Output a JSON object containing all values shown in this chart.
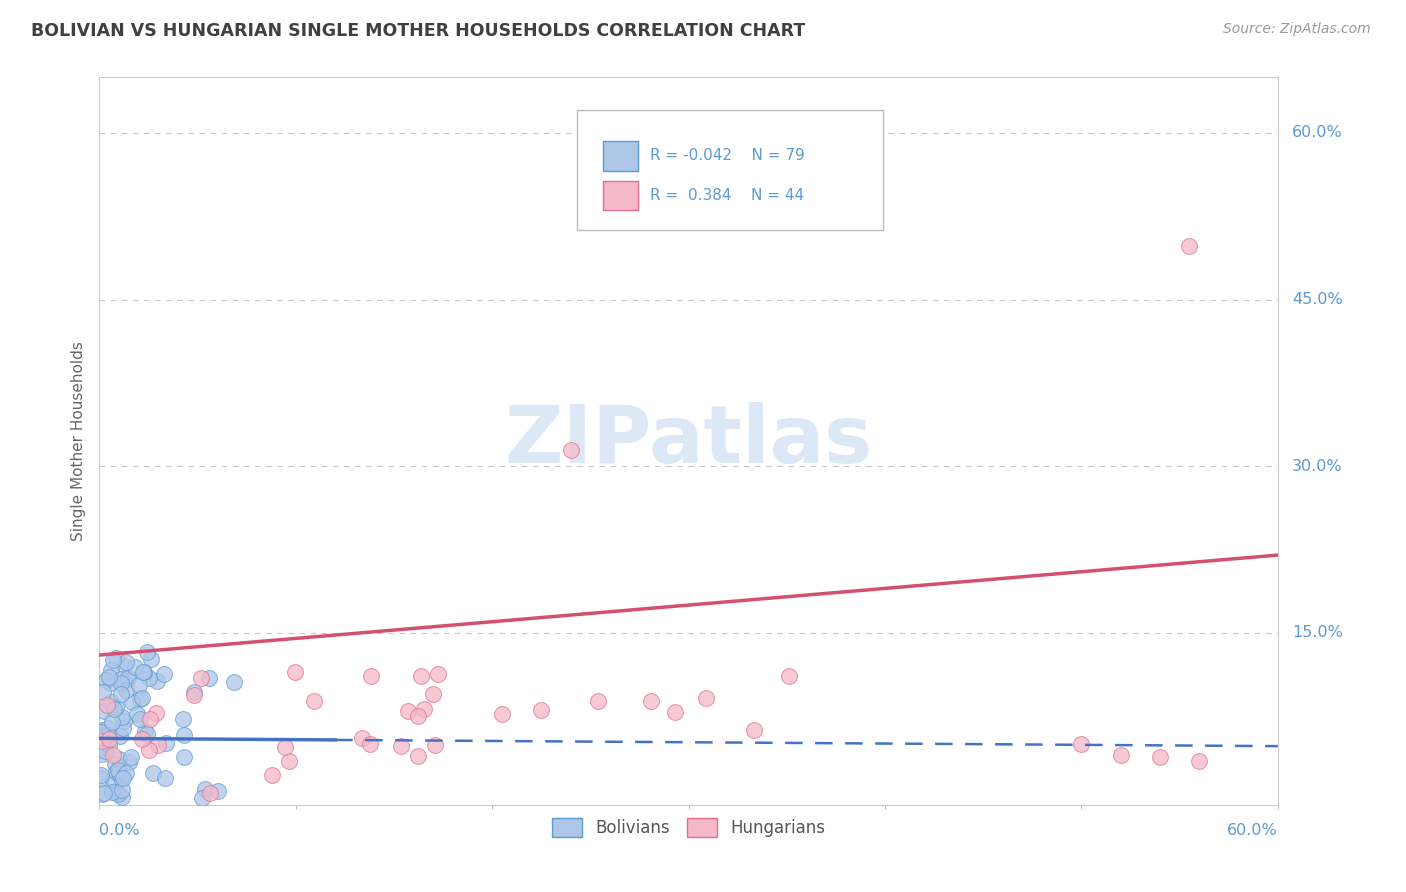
{
  "title": "BOLIVIAN VS HUNGARIAN SINGLE MOTHER HOUSEHOLDS CORRELATION CHART",
  "source": "Source: ZipAtlas.com",
  "ylabel": "Single Mother Households",
  "right_yticklabels": [
    "15.0%",
    "30.0%",
    "45.0%",
    "60.0%"
  ],
  "right_ytick_vals": [
    0.15,
    0.3,
    0.45,
    0.6
  ],
  "legend_r_blue": "-0.042",
  "legend_n_blue": "79",
  "legend_r_pink": "0.384",
  "legend_n_pink": "44",
  "blue_fill": "#aec6e8",
  "pink_fill": "#f5b8c8",
  "blue_edge": "#5b9bd5",
  "pink_edge": "#e07090",
  "blue_line": "#4472c4",
  "pink_line": "#d45070",
  "title_color": "#404040",
  "axis_label_color": "#5b9bd5",
  "watermark_color": "#dce8f5",
  "background_color": "#ffffff",
  "grid_color": "#c8c8c8",
  "xlim": [
    0.0,
    0.6
  ],
  "ylim": [
    -0.005,
    0.65
  ],
  "blue_line_y0": 0.055,
  "blue_line_y1": 0.048,
  "pink_line_y0": 0.13,
  "pink_line_y1": 0.22
}
